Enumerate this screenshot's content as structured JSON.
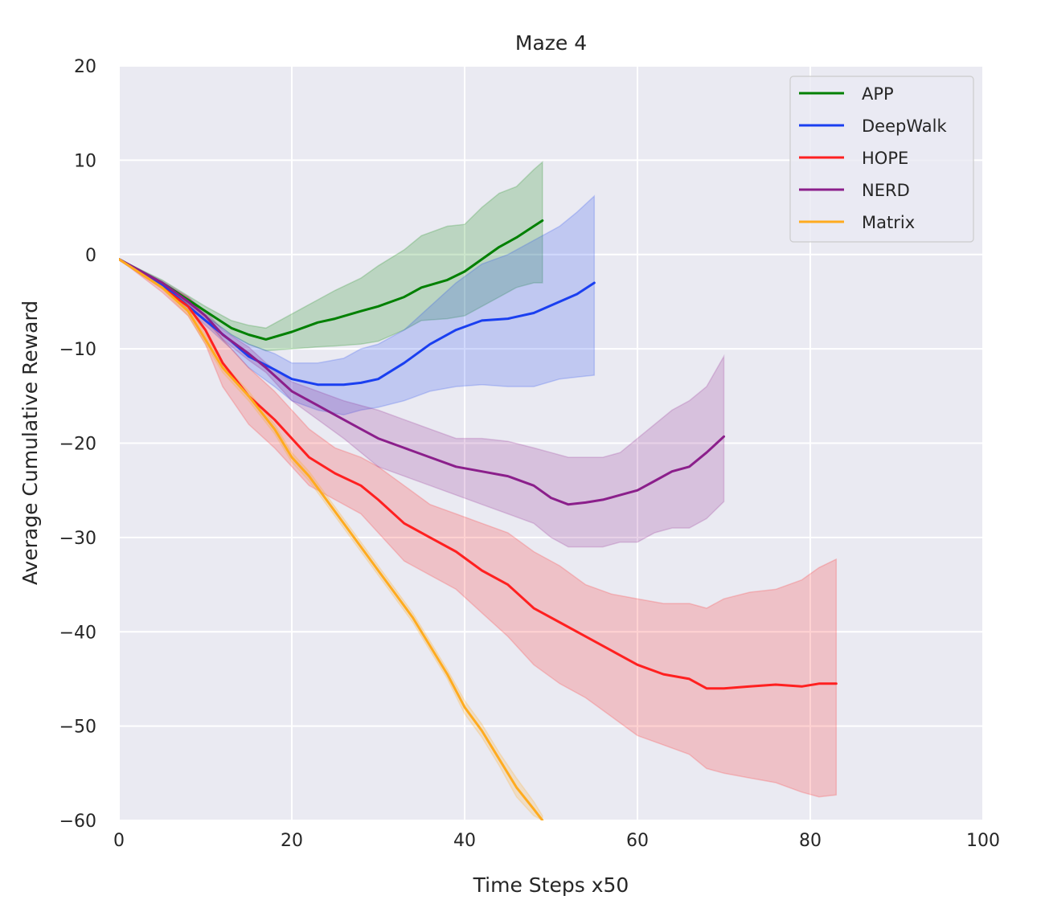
{
  "chart_data": {
    "type": "line",
    "title": "Maze 4",
    "xlabel": "Time Steps x50",
    "ylabel": "Average Cumulative Reward",
    "xlim": [
      0,
      100
    ],
    "ylim": [
      -60,
      20
    ],
    "xticks": [
      0,
      20,
      40,
      60,
      80,
      100
    ],
    "yticks": [
      20,
      10,
      0,
      -10,
      -20,
      -30,
      -40,
      -50,
      -60
    ],
    "xtick_labels": [
      "0",
      "20",
      "40",
      "60",
      "80",
      "100"
    ],
    "ytick_labels": [
      "20",
      "10",
      "0",
      "−10",
      "−20",
      "−30",
      "−40",
      "−50",
      "−60"
    ],
    "grid": true,
    "legend_position": "top-right",
    "series": [
      {
        "name": "APP",
        "color": "#008000",
        "x": [
          0,
          5,
          10,
          13,
          15,
          17,
          20,
          23,
          25,
          28,
          30,
          33,
          35,
          38,
          40,
          42,
          44,
          46,
          48,
          49
        ],
        "mean": [
          -0.5,
          -3,
          -6,
          -7.8,
          -8.5,
          -9,
          -8.2,
          -7.2,
          -6.8,
          -6,
          -5.5,
          -4.5,
          -3.5,
          -2.7,
          -1.8,
          -0.5,
          0.8,
          1.8,
          3,
          3.6
        ],
        "upper": [
          -0.5,
          -2.7,
          -5.5,
          -7,
          -7.5,
          -7.8,
          -6.3,
          -4.8,
          -3.8,
          -2.5,
          -1.2,
          0.5,
          2,
          3,
          3.2,
          5,
          6.5,
          7.2,
          9,
          9.8
        ],
        "lower": [
          -0.5,
          -3.3,
          -6.5,
          -8.5,
          -9.5,
          -10.2,
          -10,
          -9.8,
          -9.7,
          -9.5,
          -9.2,
          -8,
          -7,
          -6.8,
          -6.5,
          -5.5,
          -4.5,
          -3.5,
          -3,
          -3
        ]
      },
      {
        "name": "DeepWalk",
        "color": "#1a3ff0",
        "x": [
          0,
          5,
          10,
          13,
          15,
          18,
          20,
          23,
          26,
          28,
          30,
          33,
          36,
          39,
          42,
          45,
          48,
          51,
          53,
          55
        ],
        "mean": [
          -0.5,
          -3.2,
          -7,
          -9.2,
          -10.8,
          -12.2,
          -13.2,
          -13.8,
          -13.8,
          -13.6,
          -13.2,
          -11.5,
          -9.5,
          -8,
          -7,
          -6.8,
          -6.2,
          -5,
          -4.2,
          -3
        ],
        "upper": [
          -0.5,
          -3,
          -6.5,
          -8.5,
          -9.5,
          -10.5,
          -11.5,
          -11.5,
          -11,
          -10,
          -9.5,
          -8,
          -5.5,
          -3,
          -1,
          0,
          1.5,
          3,
          4.5,
          6.2
        ],
        "lower": [
          -0.5,
          -3.4,
          -7.5,
          -10,
          -12,
          -14,
          -15.5,
          -16.5,
          -17,
          -16.5,
          -16.2,
          -15.5,
          -14.5,
          -14,
          -13.8,
          -14,
          -14,
          -13.2,
          -13,
          -12.8
        ]
      },
      {
        "name": "HOPE",
        "color": "#ff2020",
        "x": [
          0,
          5,
          8,
          10,
          12,
          15,
          18,
          20,
          22,
          25,
          28,
          30,
          33,
          36,
          39,
          42,
          45,
          48,
          51,
          54,
          57,
          60,
          63,
          66,
          68,
          70,
          73,
          76,
          79,
          81,
          83
        ],
        "mean": [
          -0.5,
          -3.5,
          -5.5,
          -8,
          -11.5,
          -15,
          -17.5,
          -19.5,
          -21.5,
          -23.2,
          -24.5,
          -26,
          -28.5,
          -30,
          -31.5,
          -33.5,
          -35,
          -37.5,
          -39,
          -40.5,
          -42,
          -43.5,
          -44.5,
          -45,
          -46,
          -46,
          -45.8,
          -45.6,
          -45.8,
          -45.5,
          -45.5
        ],
        "upper": [
          -0.5,
          -3,
          -4.5,
          -6.5,
          -9,
          -12,
          -14.5,
          -16.5,
          -18.5,
          -20.5,
          -21.5,
          -22.5,
          -24.5,
          -26.5,
          -27.5,
          -28.5,
          -29.5,
          -31.5,
          -33,
          -35,
          -36,
          -36.5,
          -37,
          -37,
          -37.5,
          -36.5,
          -35.8,
          -35.5,
          -34.5,
          -33.2,
          -32.3
        ],
        "lower": [
          -0.5,
          -4,
          -6.5,
          -9.5,
          -14,
          -18,
          -20.5,
          -22.5,
          -24.5,
          -26,
          -27.5,
          -29.5,
          -32.5,
          -34,
          -35.5,
          -38,
          -40.5,
          -43.5,
          -45.5,
          -47,
          -49,
          -51,
          -52,
          -53,
          -54.5,
          -55,
          -55.5,
          -56,
          -57,
          -57.5,
          -57.3
        ]
      },
      {
        "name": "NERD",
        "color": "#8b1f8b",
        "x": [
          0,
          5,
          8,
          10,
          12,
          15,
          17,
          20,
          23,
          26,
          28,
          30,
          33,
          36,
          39,
          42,
          45,
          48,
          50,
          52,
          54,
          56,
          58,
          60,
          62,
          64,
          66,
          68,
          70
        ],
        "mean": [
          -0.5,
          -3,
          -5,
          -6.5,
          -8.5,
          -10.5,
          -12,
          -14.5,
          -16,
          -17.5,
          -18.5,
          -19.5,
          -20.5,
          -21.5,
          -22.5,
          -23,
          -23.5,
          -24.5,
          -25.8,
          -26.5,
          -26.3,
          -26,
          -25.5,
          -25,
          -24,
          -23,
          -22.5,
          -21,
          -19.3
        ],
        "upper": [
          -0.5,
          -2.8,
          -4.5,
          -6,
          -8,
          -9.8,
          -11.5,
          -13.5,
          -14.5,
          -15.5,
          -16,
          -16.5,
          -17.5,
          -18.5,
          -19.5,
          -19.5,
          -19.8,
          -20.5,
          -21,
          -21.5,
          -21.5,
          -21.5,
          -21,
          -19.5,
          -18,
          -16.5,
          -15.5,
          -14,
          -10.8
        ],
        "lower": [
          -0.5,
          -3.2,
          -5.5,
          -7,
          -9,
          -11.2,
          -12.5,
          -15.5,
          -17.5,
          -19.5,
          -21,
          -22.5,
          -23.5,
          -24.5,
          -25.5,
          -26.5,
          -27.5,
          -28.5,
          -30,
          -31,
          -31,
          -31,
          -30.5,
          -30.5,
          -29.5,
          -29,
          -29,
          -28,
          -26.2
        ]
      },
      {
        "name": "Matrix",
        "color": "#ffab1f",
        "x": [
          0,
          5,
          8,
          10,
          12,
          15,
          18,
          20,
          22,
          24,
          26,
          28,
          30,
          32,
          34,
          36,
          38,
          40,
          42,
          44,
          46,
          48,
          49
        ],
        "mean": [
          -0.5,
          -3.5,
          -6,
          -9,
          -12,
          -15,
          -18.5,
          -21.5,
          -23.5,
          -26,
          -28.5,
          -31,
          -33.5,
          -36,
          -38.5,
          -41.5,
          -44.5,
          -48,
          -50.5,
          -53.5,
          -56.5,
          -58.8,
          -60
        ],
        "upper": [
          -0.5,
          -3.3,
          -5.5,
          -8.5,
          -11.5,
          -14.5,
          -18,
          -21,
          -23,
          -25.5,
          -28,
          -30.5,
          -33,
          -35.5,
          -38,
          -41,
          -44,
          -47.3,
          -49.8,
          -52.8,
          -55.5,
          -58,
          -59.5
        ],
        "lower": [
          -0.5,
          -3.7,
          -6.5,
          -9.5,
          -12.5,
          -15.5,
          -19,
          -22,
          -24,
          -26.5,
          -29,
          -31.5,
          -34,
          -36.5,
          -39,
          -42,
          -45,
          -48.7,
          -51.2,
          -54.2,
          -57.5,
          -59.5,
          -60
        ]
      }
    ]
  }
}
